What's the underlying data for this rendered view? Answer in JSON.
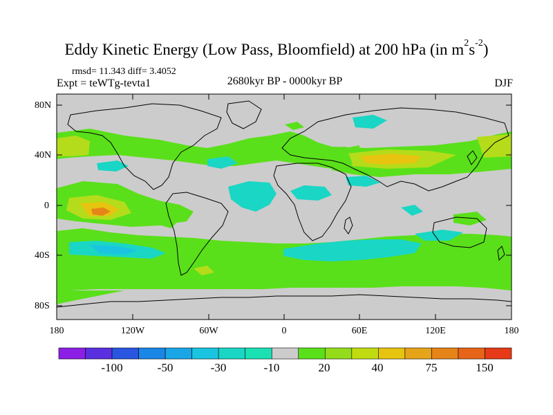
{
  "title": {
    "main": "Eddy Kinetic Energy (Low Pass, Bloomfield) at 200 hPa (in m",
    "sup1": "2",
    "mid": "s",
    "sup2": "-2",
    "end": ")"
  },
  "stats": "rmsd= 11.343 diff= 3.4052",
  "experiment": "Expt = teWTg-tevta1",
  "period": "2680kyr BP - 0000kyr BP",
  "season": "DJF",
  "lat_labels": [
    "80N",
    "40N",
    "0",
    "40S",
    "80S"
  ],
  "lon_labels": [
    "180",
    "120W",
    "60W",
    "0",
    "60E",
    "120E",
    "180"
  ],
  "colorbar": {
    "labels": [
      "-100",
      "-50",
      "-30",
      "-10",
      "20",
      "40",
      "75",
      "150"
    ],
    "colors": [
      "#8c1fe6",
      "#5a2fe0",
      "#2a55e0",
      "#1a86e6",
      "#1aa6e6",
      "#1ac4e0",
      "#1ad6c4",
      "#1ae0b4",
      "#cccccc",
      "#5ae01a",
      "#94dc1a",
      "#c0dc10",
      "#e6c410",
      "#e6a418",
      "#e68418",
      "#e66418",
      "#e63a18"
    ]
  },
  "map_colors": {
    "ocean_neutral": "#cccccc",
    "green": "#5ae01a",
    "yellowgreen": "#b4dc1a",
    "yellow": "#e6c410",
    "orange": "#e6a418",
    "red": "#e67018",
    "cyan": "#1ad6c4",
    "lightcyan": "#1ae0b4",
    "blue": "#1ac4e0"
  }
}
